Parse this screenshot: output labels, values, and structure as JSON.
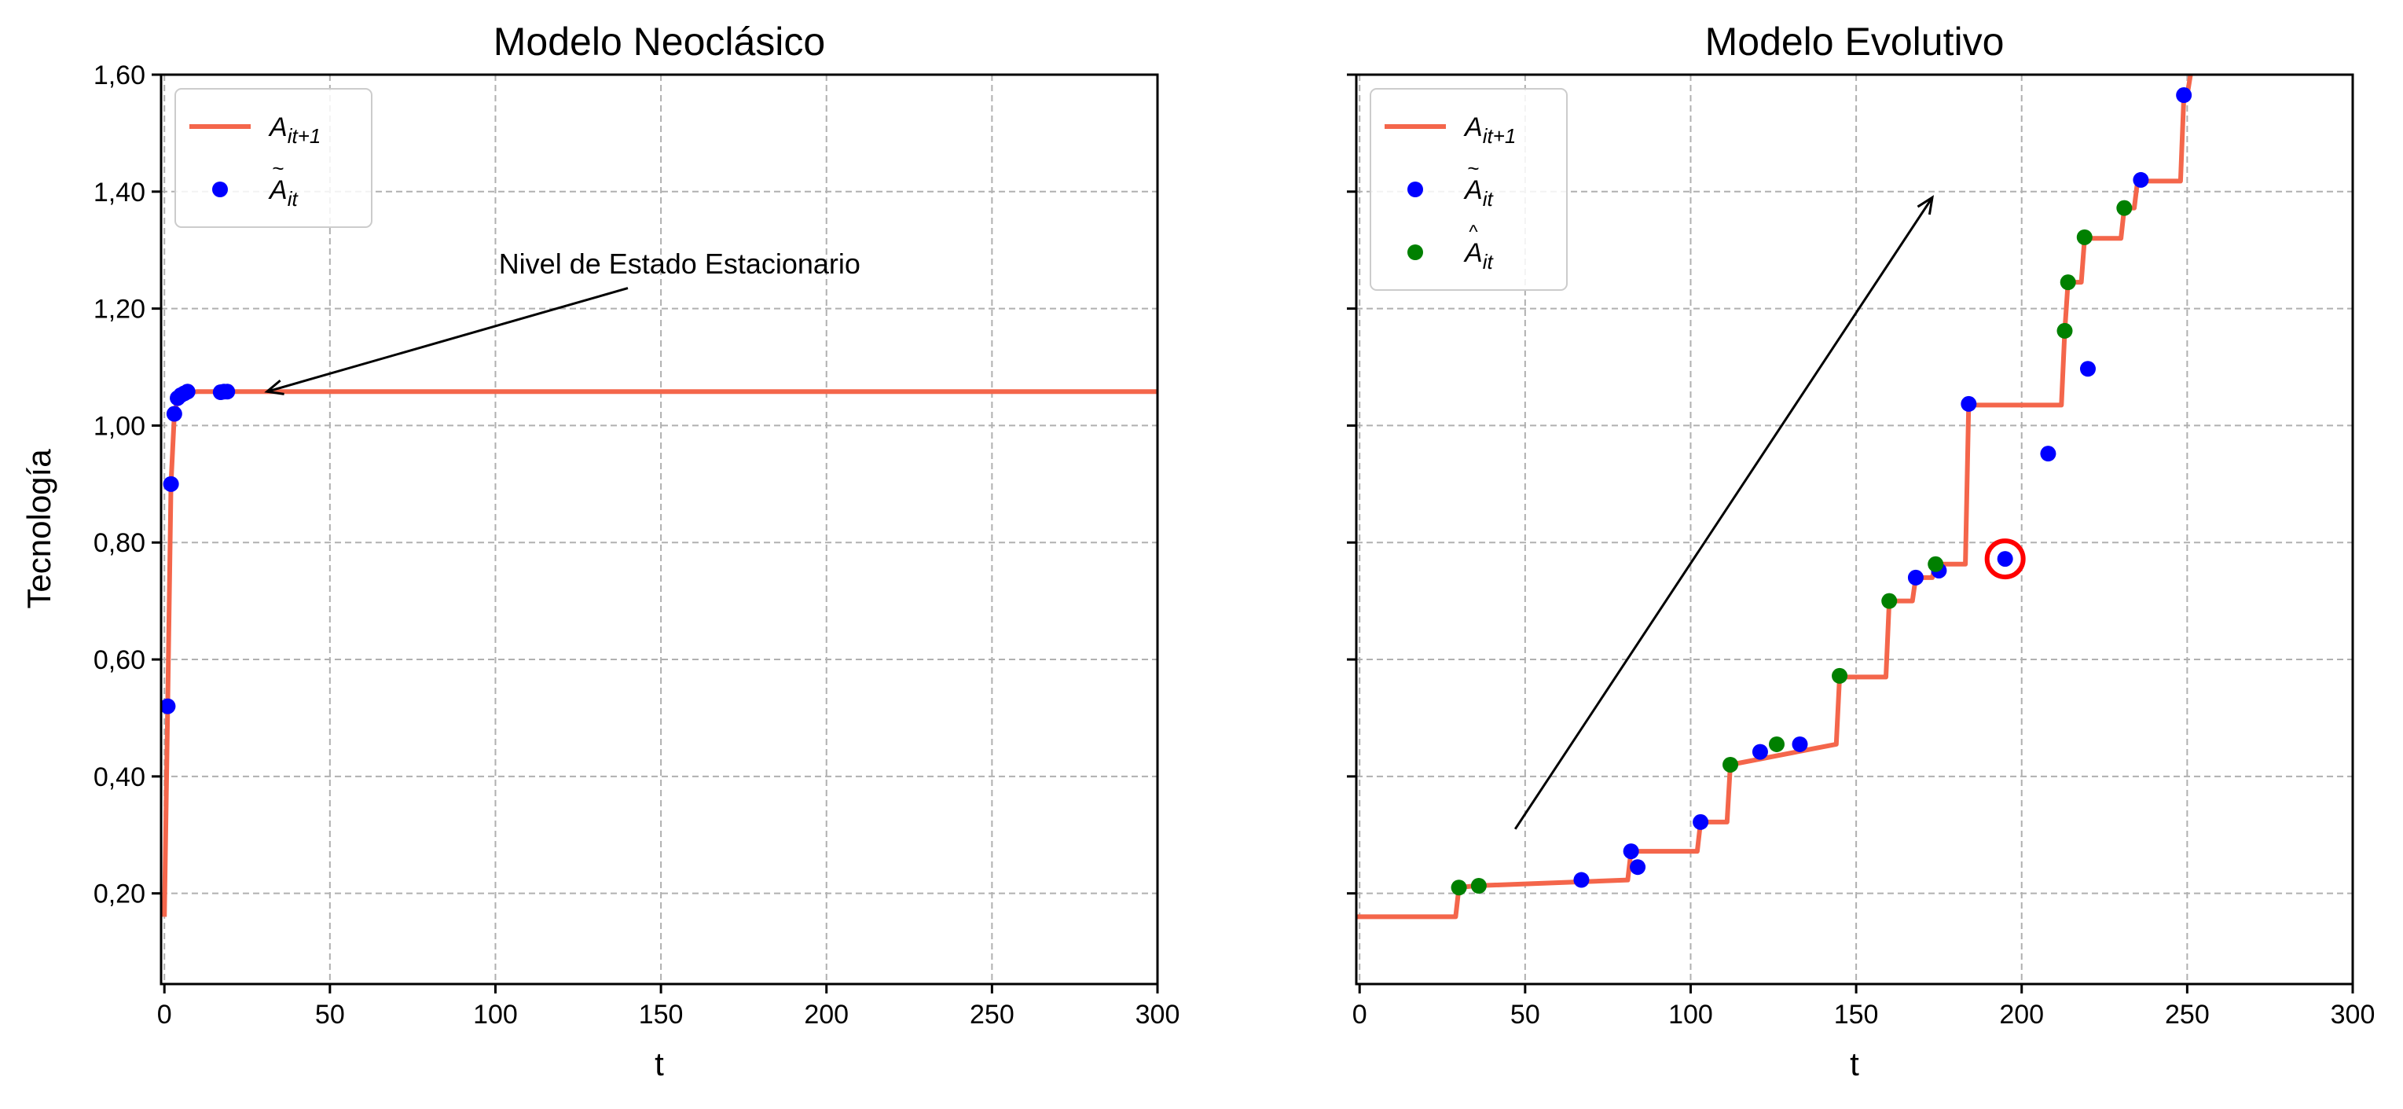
{
  "chart_data": [
    {
      "type": "line",
      "title": "Modelo Neoclásico",
      "xlabel": "t",
      "ylabel": "Tecnología",
      "xlim": [
        -1,
        300
      ],
      "ylim": [
        0.045,
        1.6
      ],
      "xticks": [
        0,
        50,
        100,
        150,
        200,
        250,
        300
      ],
      "xtick_labels": [
        "0",
        "50",
        "100",
        "150",
        "200",
        "250",
        "300"
      ],
      "yticks": [
        0.2,
        0.4,
        0.6,
        0.8,
        1.0,
        1.2,
        1.4,
        1.6
      ],
      "ytick_labels": [
        "0,20",
        "0,40",
        "0,60",
        "0,80",
        "1,00",
        "1,20",
        "1,40",
        "1,60"
      ],
      "grid": true,
      "legend": {
        "position": "upper-left",
        "entries": [
          {
            "label": "A_{it+1}",
            "base": "A",
            "accent": "",
            "sub": "it+1",
            "kind": "line",
            "color": "#f4664b"
          },
          {
            "label": "Ã_{it}",
            "base": "A",
            "accent": "~",
            "sub": "it",
            "kind": "marker",
            "color": "#0000ff"
          }
        ]
      },
      "series": [
        {
          "name": "A_{it+1}",
          "kind": "line",
          "color": "#f4664b",
          "x": [
            0,
            1,
            2,
            3,
            4,
            5,
            6,
            8,
            10,
            15,
            20,
            300
          ],
          "y": [
            0.16,
            0.52,
            0.9,
            1.02,
            1.045,
            1.052,
            1.055,
            1.057,
            1.058,
            1.058,
            1.058,
            1.058
          ]
        },
        {
          "name": "Ã_{it}",
          "kind": "scatter",
          "color": "#0000ff",
          "x": [
            1,
            2,
            3,
            4,
            5,
            6,
            7,
            17,
            18,
            19
          ],
          "y": [
            0.52,
            0.9,
            1.02,
            1.047,
            1.052,
            1.055,
            1.058,
            1.057,
            1.058,
            1.058
          ]
        }
      ],
      "annotations": [
        {
          "text": "Nivel de Estado Estacionario",
          "text_x": 101,
          "text_y": 1.26,
          "arrow_from": [
            140,
            1.235
          ],
          "arrow_to": [
            31,
            1.058
          ]
        }
      ]
    },
    {
      "type": "line",
      "title": "Modelo Evolutivo",
      "xlabel": "t",
      "ylabel": "",
      "xlim": [
        -1,
        300
      ],
      "ylim": [
        0.045,
        1.6
      ],
      "xticks": [
        0,
        50,
        100,
        150,
        200,
        250,
        300
      ],
      "xtick_labels": [
        "0",
        "50",
        "100",
        "150",
        "200",
        "250",
        "300"
      ],
      "yticks": [
        0.2,
        0.4,
        0.6,
        0.8,
        1.0,
        1.2,
        1.4,
        1.6
      ],
      "ytick_labels": [],
      "grid": true,
      "legend": {
        "position": "upper-left",
        "entries": [
          {
            "label": "A_{it+1}",
            "base": "A",
            "accent": "",
            "sub": "it+1",
            "kind": "line",
            "color": "#f4664b"
          },
          {
            "label": "Ã_{it}",
            "base": "A",
            "accent": "~",
            "sub": "it",
            "kind": "marker",
            "color": "#0000ff"
          },
          {
            "label": "Â_{it}",
            "base": "A",
            "accent": "^",
            "sub": "it",
            "kind": "marker",
            "color": "#008000"
          }
        ]
      },
      "series": [
        {
          "name": "A_{it+1}",
          "kind": "step",
          "color": "#f4664b",
          "x": [
            -1,
            29,
            30,
            35,
            81,
            82,
            102,
            103,
            111,
            112,
            144,
            145,
            159,
            160,
            167,
            168,
            173,
            174,
            183,
            184,
            212,
            213,
            214,
            215,
            218,
            219,
            230,
            231,
            234,
            235,
            248,
            249,
            250,
            251
          ],
          "y": [
            0.16,
            0.16,
            0.21,
            0.213,
            0.223,
            0.272,
            0.272,
            0.322,
            0.322,
            0.42,
            0.455,
            0.57,
            0.57,
            0.7,
            0.7,
            0.74,
            0.74,
            0.763,
            0.763,
            1.035,
            1.035,
            1.16,
            1.245,
            1.245,
            1.245,
            1.32,
            1.32,
            1.372,
            1.372,
            1.418,
            1.418,
            1.565,
            1.565,
            1.6
          ]
        },
        {
          "name": "Ã_{it}",
          "kind": "scatter",
          "color": "#0000ff",
          "x": [
            67,
            82,
            84,
            103,
            121,
            133,
            168,
            175,
            184,
            195,
            208,
            220,
            236,
            249
          ],
          "y": [
            0.223,
            0.272,
            0.245,
            0.322,
            0.442,
            0.455,
            0.74,
            0.752,
            1.037,
            0.772,
            0.952,
            1.097,
            1.42,
            1.565
          ]
        },
        {
          "name": "Â_{it}",
          "kind": "scatter",
          "color": "#008000",
          "x": [
            30,
            36,
            112,
            126,
            145,
            160,
            174,
            213,
            214,
            219,
            231
          ],
          "y": [
            0.21,
            0.213,
            0.42,
            0.455,
            0.572,
            0.7,
            0.763,
            1.162,
            1.245,
            1.322,
            1.372
          ]
        }
      ],
      "highlight": {
        "x": 195,
        "y": 0.772,
        "color": "#ff0000"
      },
      "annotations": [
        {
          "text": "",
          "arrow_from": [
            47,
            0.31
          ],
          "arrow_to": [
            173,
            1.39
          ]
        }
      ]
    }
  ]
}
